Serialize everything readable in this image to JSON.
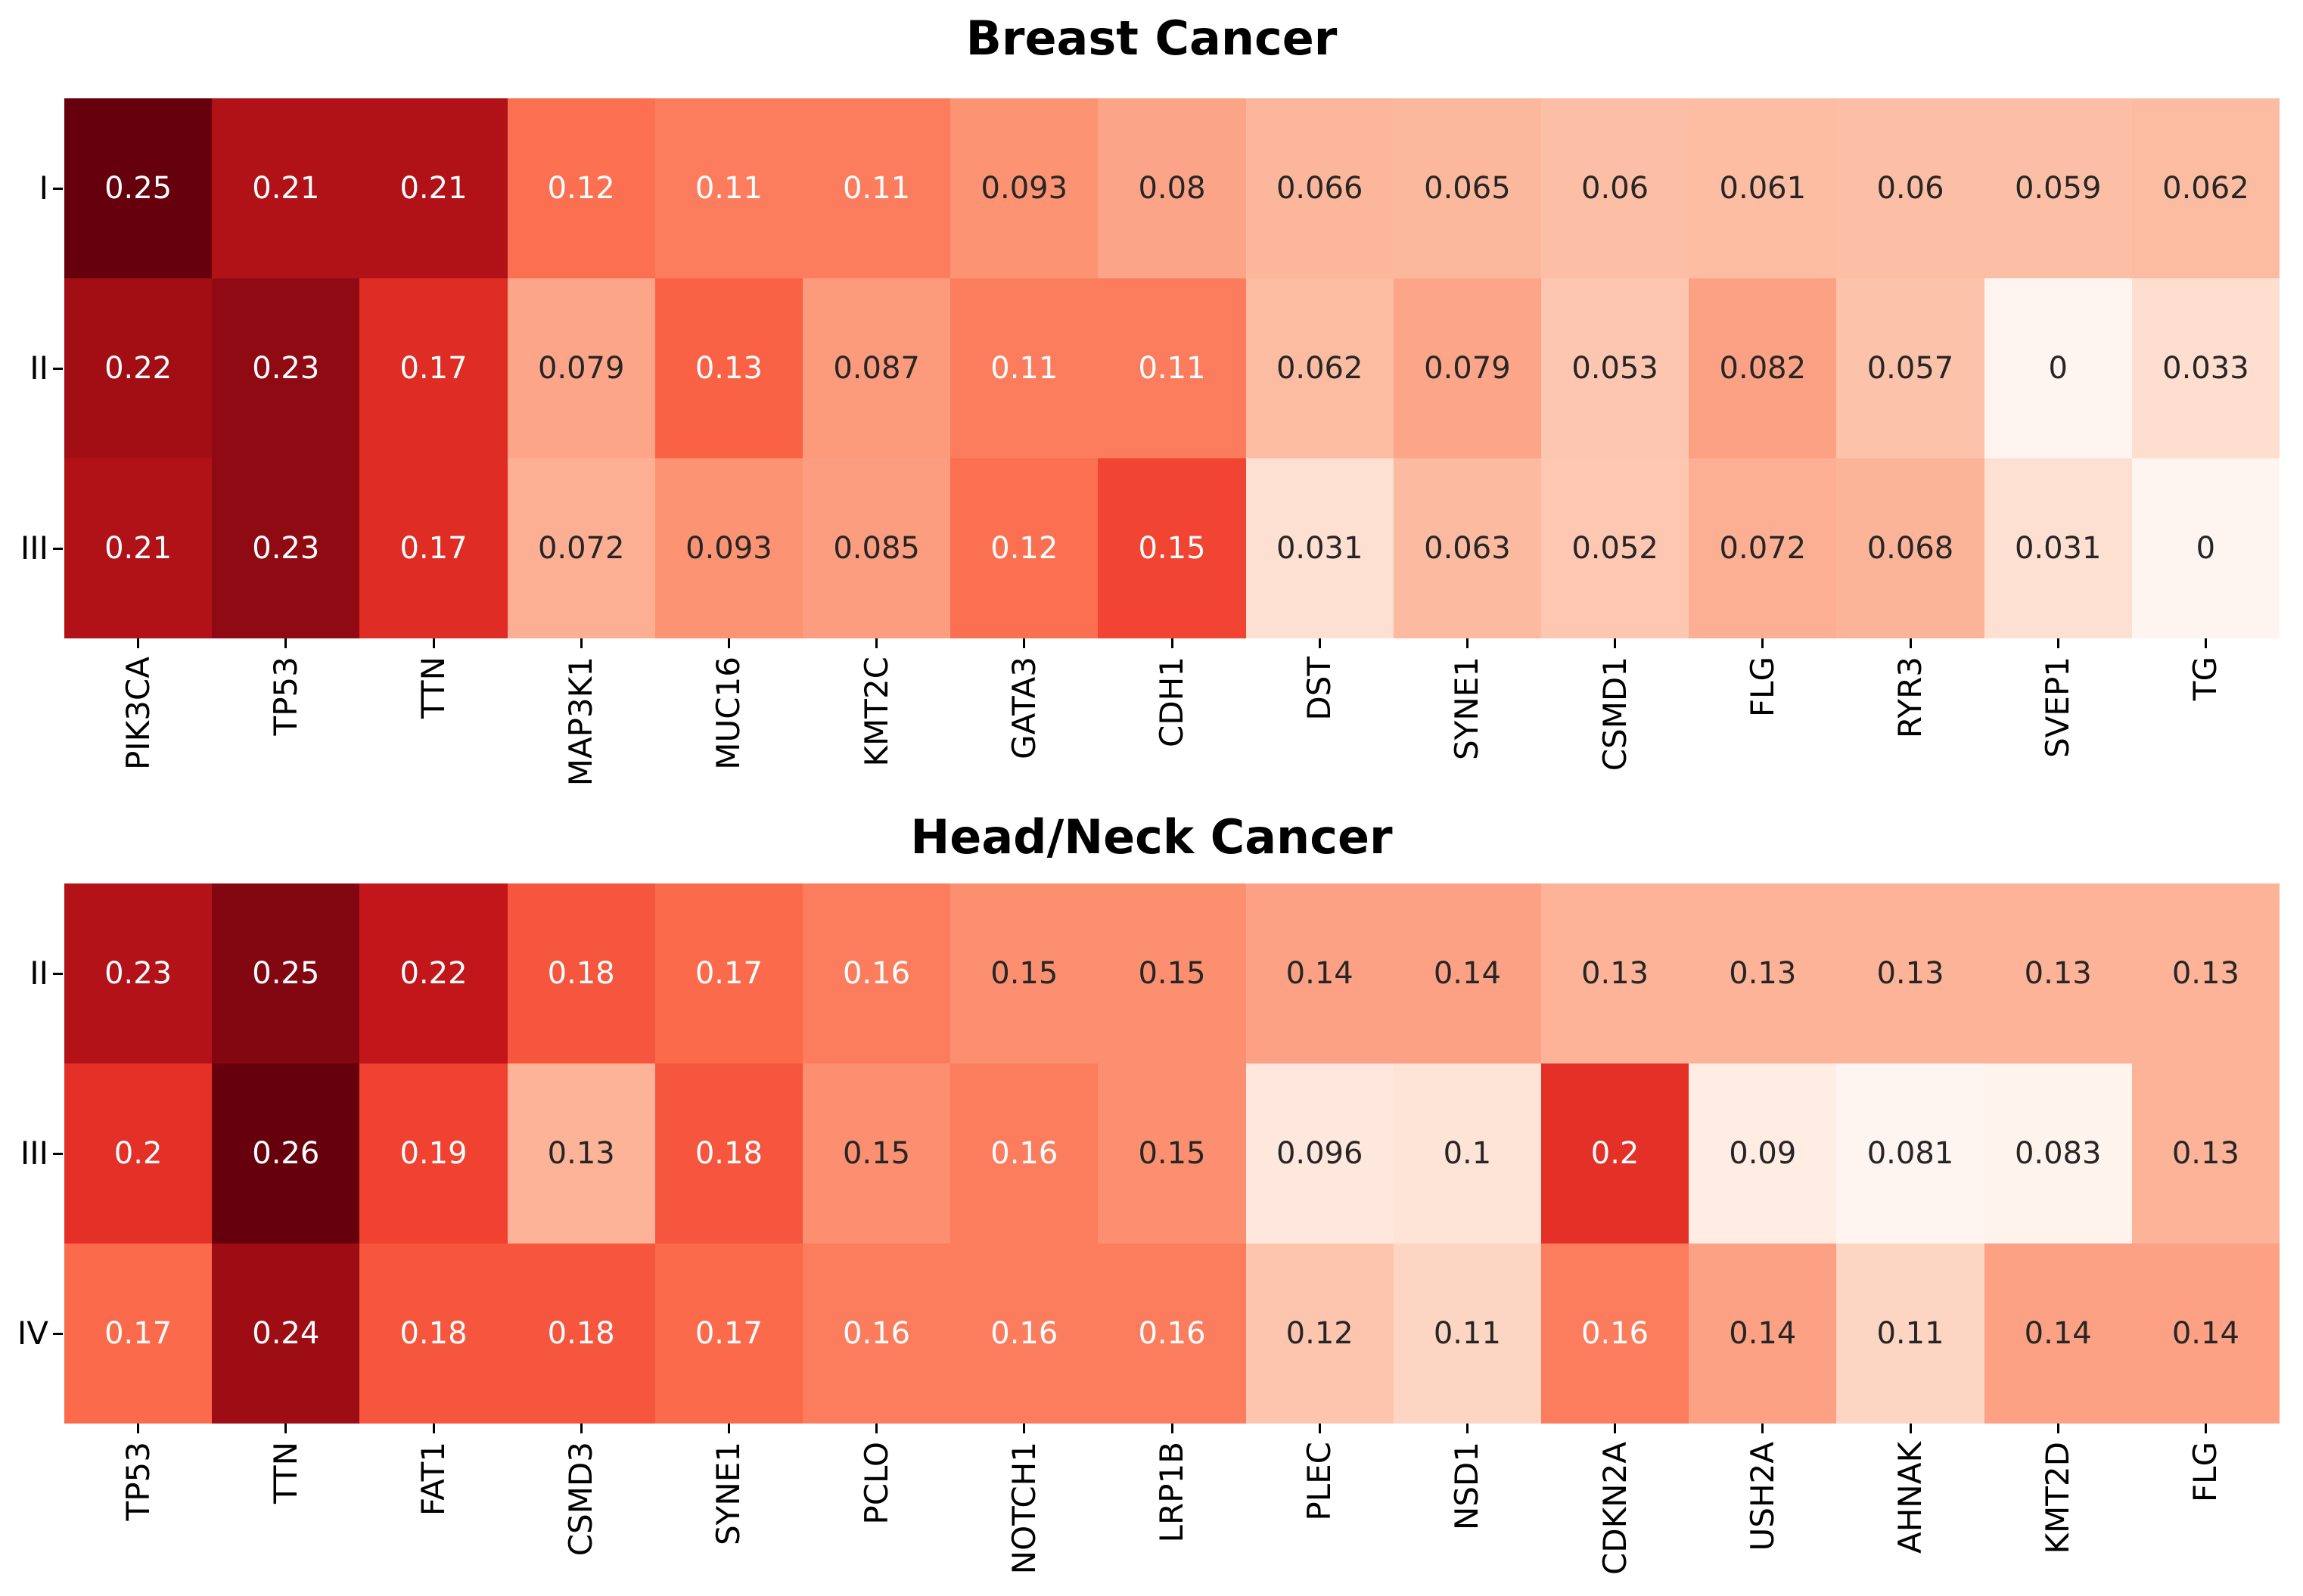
{
  "chart_data": [
    {
      "type": "heatmap",
      "title": "Breast Cancer",
      "rows": [
        "I",
        "II",
        "III"
      ],
      "columns": [
        "PIK3CA",
        "TP53",
        "TTN",
        "MAP3K1",
        "MUC16",
        "KMT2C",
        "GATA3",
        "CDH1",
        "DST",
        "SYNE1",
        "CSMD1",
        "FLG",
        "RYR3",
        "SVEP1",
        "TG"
      ],
      "values": [
        [
          0.25,
          0.21,
          0.21,
          0.12,
          0.11,
          0.11,
          0.093,
          0.08,
          0.066,
          0.065,
          0.06,
          0.061,
          0.06,
          0.059,
          0.062
        ],
        [
          0.22,
          0.23,
          0.17,
          0.079,
          0.13,
          0.087,
          0.11,
          0.11,
          0.062,
          0.079,
          0.053,
          0.082,
          0.057,
          0,
          0.033
        ],
        [
          0.21,
          0.23,
          0.17,
          0.072,
          0.093,
          0.085,
          0.12,
          0.15,
          0.031,
          0.063,
          0.052,
          0.072,
          0.068,
          0.031,
          0
        ]
      ],
      "colormap": "Reds",
      "annotated": true,
      "color_scale": {
        "vmin": 0,
        "vmax": 0.25
      },
      "legend": "none",
      "grid": false
    },
    {
      "type": "heatmap",
      "title": "Head/Neck Cancer",
      "rows": [
        "II",
        "III",
        "IV"
      ],
      "columns": [
        "TP53",
        "TTN",
        "FAT1",
        "CSMD3",
        "SYNE1",
        "PCLO",
        "NOTCH1",
        "LRP1B",
        "PLEC",
        "NSD1",
        "CDKN2A",
        "USH2A",
        "AHNAK",
        "KMT2D",
        "FLG"
      ],
      "values": [
        [
          0.23,
          0.25,
          0.22,
          0.18,
          0.17,
          0.16,
          0.15,
          0.15,
          0.14,
          0.14,
          0.13,
          0.13,
          0.13,
          0.13,
          0.13
        ],
        [
          0.2,
          0.26,
          0.19,
          0.13,
          0.18,
          0.15,
          0.16,
          0.15,
          0.096,
          0.1,
          0.2,
          0.09,
          0.081,
          0.083,
          0.13
        ],
        [
          0.17,
          0.24,
          0.18,
          0.18,
          0.17,
          0.16,
          0.16,
          0.16,
          0.12,
          0.11,
          0.16,
          0.14,
          0.11,
          0.14,
          0.14
        ]
      ],
      "colormap": "Reds",
      "annotated": true,
      "color_scale": {
        "vmin": 0.081,
        "vmax": 0.26
      },
      "legend": "none",
      "grid": false
    }
  ],
  "styles": {
    "background": "#ffffff",
    "title_color": "#000000",
    "tick_color": "#000000",
    "annotation_dark_text": "#262626",
    "annotation_light_text": "#ffffff",
    "reds_colormap_stops": [
      "#fff5f0",
      "#fee0d2",
      "#fcbba1",
      "#fc9272",
      "#fb6a4a",
      "#ef3b2c",
      "#cb181d",
      "#a50f15",
      "#67000d"
    ]
  }
}
